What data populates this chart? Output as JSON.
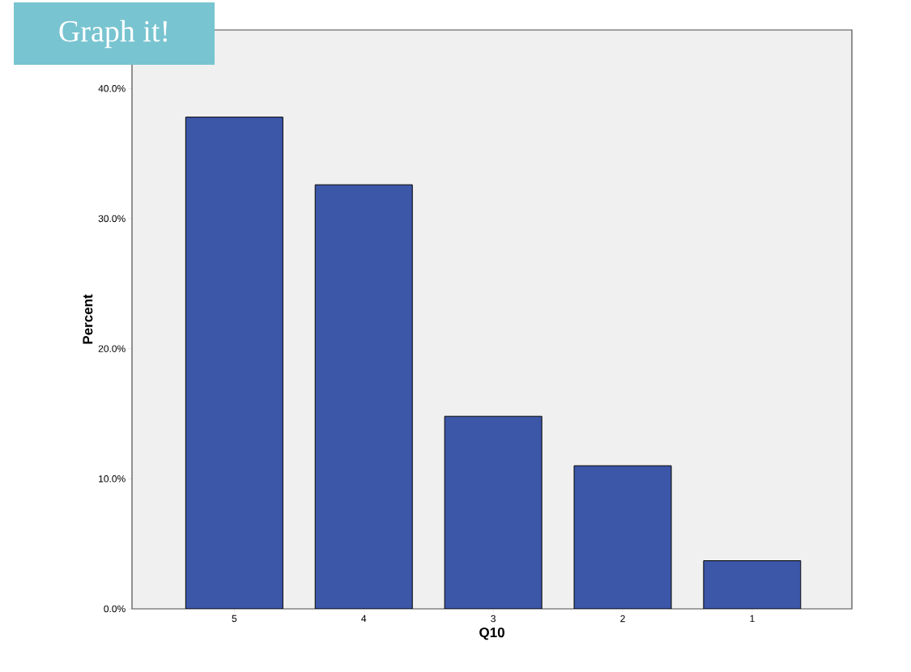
{
  "chart_data": {
    "type": "bar",
    "title": "Graph it!",
    "xlabel": "Q10",
    "ylabel": "Percent",
    "categories": [
      "5",
      "4",
      "3",
      "2",
      "1"
    ],
    "values": [
      37.8,
      32.6,
      14.8,
      11.0,
      3.7
    ],
    "color": "#3c56a8",
    "ylim": [
      0,
      44.5
    ],
    "yticks": [
      {
        "value": 0,
        "label": "0.0%"
      },
      {
        "value": 10,
        "label": "10.0%"
      },
      {
        "value": 20,
        "label": "20.0%"
      },
      {
        "value": 30,
        "label": "30.0%"
      },
      {
        "value": 40,
        "label": "40.0%"
      }
    ],
    "grid": false
  }
}
